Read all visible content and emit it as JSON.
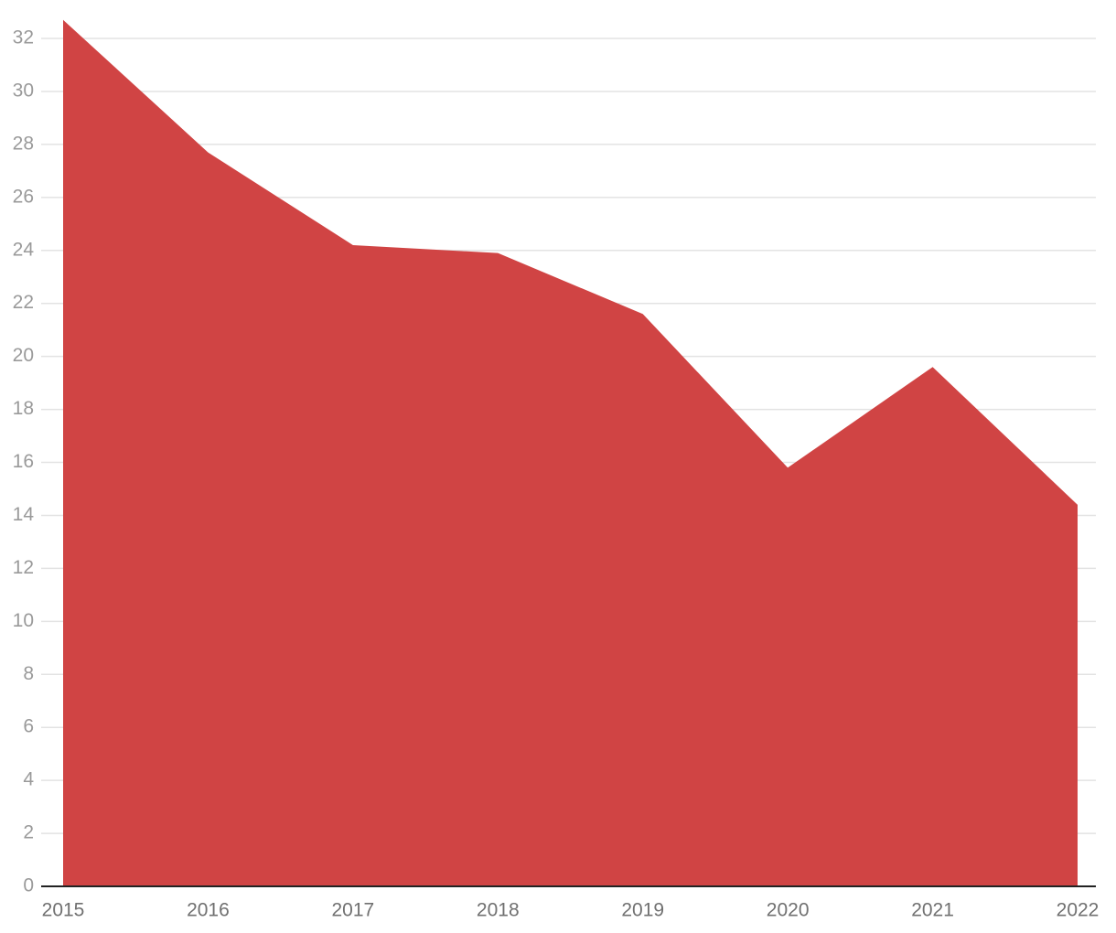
{
  "chart_data": {
    "type": "area",
    "categories": [
      "2015",
      "2016",
      "2017",
      "2018",
      "2019",
      "2020",
      "2021",
      "2022"
    ],
    "values": [
      32.7,
      27.7,
      24.2,
      23.9,
      21.6,
      15.8,
      19.6,
      14.4
    ],
    "color": "#cf4040",
    "ylim": [
      0,
      33
    ],
    "yticks": [
      0,
      2,
      4,
      6,
      8,
      10,
      12,
      14,
      16,
      18,
      20,
      22,
      24,
      26,
      28,
      30,
      32
    ],
    "grid": true
  }
}
